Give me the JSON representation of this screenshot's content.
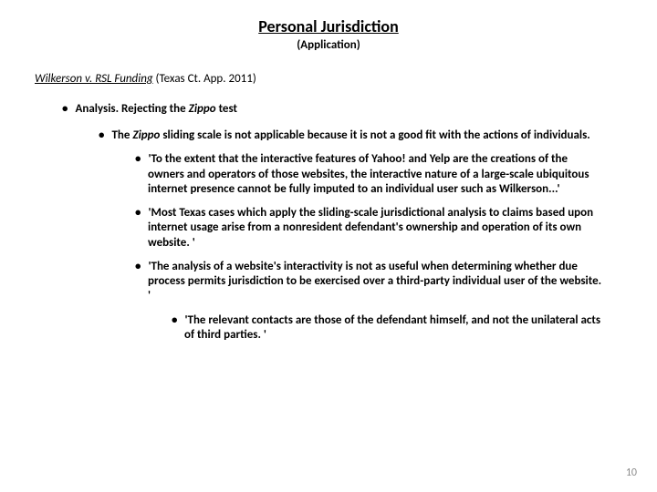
{
  "title": "Personal Jurisdiction",
  "subtitle": "(Application)",
  "case": {
    "name": "Wilkerson v. RSL Funding",
    "court": " (Texas Ct. App. 2011)"
  },
  "analysis": {
    "label_prefix": "Analysis.  ",
    "label_main": "Rejecting the ",
    "label_italic": "Zippo",
    "label_suffix": " test"
  },
  "point1": {
    "prefix": "The ",
    "italic": "Zippo",
    "rest": " sliding scale is not applicable because it is not a good fit with the actions of individuals."
  },
  "point1a": "'To the extent that the interactive features of Yahoo! and Yelp are the creations of the owners and operators of those websites, the interactive nature of a large-scale ubiquitous internet presence cannot be fully imputed to an individual user such as Wilkerson...'",
  "point1b": "'Most Texas cases which apply the sliding-scale jurisdictional analysis to claims based upon internet usage arise from a nonresident defendant's ownership and operation of its own website. '",
  "point1c": "'The analysis of a website's interactivity is not as useful when determining whether due process permits jurisdiction to be exercised over a third-party individual user of the website. '",
  "point1c1": "'The relevant contacts are those of the defendant himself, and not the unilateral acts of third parties. '",
  "pageNumber": "10",
  "colors": {
    "text": "#000000",
    "background": "#ffffff",
    "pageNum": "#8a8a8a"
  }
}
